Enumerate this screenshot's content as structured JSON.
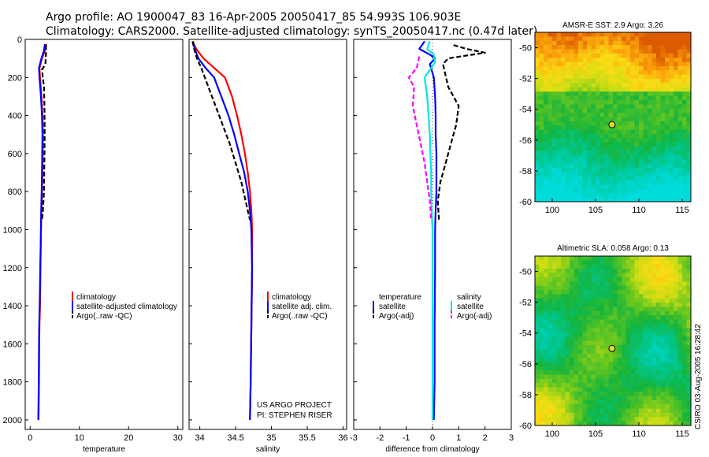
{
  "title_line1": "Argo profile: AO 1900047_83 16-Apr-2005 20050417_85 54.993S 106.903E",
  "title_line2": "Climatology: CARS2000. Satellite-adjusted climatology: synTS_20050417.nc (0.47d later)",
  "credit_vertical": "CSIRO 03-Aug-2005 16:28:42",
  "chart_data": [
    {
      "type": "line",
      "id": "temperature",
      "xlabel": "temperature",
      "ylabel": "",
      "xlim": [
        -1,
        31
      ],
      "ylim": [
        2050,
        0
      ],
      "xticks": [
        0,
        10,
        20,
        30
      ],
      "yticks": [
        0,
        200,
        400,
        600,
        800,
        1000,
        1200,
        1400,
        1600,
        1800,
        2000
      ],
      "legend": [
        "climatology",
        "satellite-adjusted climatology",
        "Argo(..raw -QC)"
      ],
      "series": [
        {
          "name": "climatology",
          "color": "#ff0000",
          "dash": "solid",
          "x": [
            3.3,
            3.0,
            2.4,
            1.9,
            2.0,
            2.3,
            2.5,
            2.6,
            2.55,
            2.5,
            2.4,
            2.3,
            2.2,
            2.1,
            2.0,
            1.9,
            1.85,
            1.8,
            1.75,
            1.7
          ],
          "y": [
            25,
            60,
            100,
            150,
            200,
            300,
            400,
            500,
            600,
            700,
            800,
            900,
            1000,
            1200,
            1400,
            1500,
            1600,
            1800,
            1900,
            2000
          ]
        },
        {
          "name": "satellite-adjusted climatology",
          "color": "#0000ff",
          "dash": "solid",
          "x": [
            3.0,
            2.8,
            2.3,
            1.8,
            1.9,
            2.2,
            2.4,
            2.5,
            2.45,
            2.4,
            2.35,
            2.25,
            2.2,
            2.05,
            1.95,
            1.85,
            1.8,
            1.75,
            1.7,
            1.65
          ],
          "y": [
            25,
            60,
            100,
            150,
            200,
            300,
            400,
            500,
            600,
            700,
            800,
            900,
            1000,
            1200,
            1400,
            1500,
            1600,
            1800,
            1900,
            2000
          ]
        },
        {
          "name": "Argo(..raw -QC)",
          "color": "#000000",
          "dash": "dash",
          "x": [
            3.2,
            3.2,
            3.1,
            2.4,
            2.8,
            2.9,
            2.95,
            2.9,
            2.85,
            2.8,
            2.6,
            2.4
          ],
          "y": [
            30,
            80,
            130,
            160,
            250,
            350,
            500,
            600,
            700,
            800,
            900,
            950
          ]
        }
      ]
    },
    {
      "type": "line",
      "id": "salinity",
      "xlabel": "salinity",
      "ylabel": "",
      "xlim": [
        33.85,
        36.05
      ],
      "ylim": [
        2050,
        0
      ],
      "xticks": [
        34,
        34.5,
        35,
        35.5,
        36
      ],
      "legend": [
        "climatology",
        "satellite adj. clim.",
        "Argo(..raw -QC)"
      ],
      "annotation_line1": "US ARGO PROJECT",
      "annotation_line2": "PI: STEPHEN RISER",
      "series": [
        {
          "name": "climatology",
          "color": "#ff0000",
          "dash": "solid",
          "x": [
            33.9,
            33.95,
            34.05,
            34.2,
            34.35,
            34.45,
            34.52,
            34.58,
            34.63,
            34.67,
            34.7,
            34.72,
            34.73,
            34.73,
            34.72,
            34.71,
            34.7
          ],
          "y": [
            10,
            50,
            100,
            150,
            200,
            300,
            400,
            500,
            600,
            700,
            800,
            900,
            1000,
            1200,
            1500,
            1800,
            2000
          ]
        },
        {
          "name": "satellite adj. clim.",
          "color": "#0000ff",
          "dash": "solid",
          "x": [
            33.9,
            33.93,
            33.98,
            34.08,
            34.2,
            34.3,
            34.4,
            34.48,
            34.55,
            34.62,
            34.67,
            34.7,
            34.72,
            34.73,
            34.72,
            34.71,
            34.7
          ],
          "y": [
            10,
            50,
            100,
            150,
            200,
            300,
            400,
            500,
            600,
            700,
            800,
            900,
            1000,
            1200,
            1500,
            1800,
            2000
          ]
        },
        {
          "name": "Argo(..raw -QC)",
          "color": "#000000",
          "dash": "dash",
          "x": [
            33.9,
            33.92,
            33.96,
            34.02,
            34.12,
            34.22,
            34.32,
            34.42,
            34.5,
            34.58,
            34.64,
            34.7
          ],
          "y": [
            10,
            50,
            100,
            150,
            250,
            350,
            450,
            550,
            650,
            750,
            850,
            950
          ]
        }
      ]
    },
    {
      "type": "line",
      "id": "difference",
      "xlabel": "difference from climatology",
      "ylabel": "",
      "xlim": [
        -3,
        3
      ],
      "ylim": [
        2050,
        0
      ],
      "xticks": [
        -3,
        -2,
        -1,
        0,
        1,
        2,
        3
      ],
      "legend_left": [
        "temperature",
        "satellite",
        "Argo(-adj)"
      ],
      "legend_right": [
        "salinity",
        "satellite",
        "Argo(-adj)"
      ],
      "series": [
        {
          "name": "temperature satellite",
          "color": "#0000ff",
          "dash": "solid",
          "x": [
            -0.3,
            -0.5,
            -0.1,
            0.1,
            -0.1,
            0.05,
            0.1,
            0.12,
            0.12,
            0.15,
            0.15,
            0.15,
            0.12,
            0.1,
            0.1,
            0.08,
            0.08,
            0.05
          ],
          "y": [
            10,
            50,
            80,
            100,
            130,
            200,
            300,
            400,
            500,
            600,
            700,
            800,
            900,
            1000,
            1200,
            1500,
            1800,
            2000
          ]
        },
        {
          "name": "salinity satellite",
          "color": "#00e5e5",
          "dash": "solid",
          "x": [
            -0.1,
            -0.2,
            0.05,
            0.1,
            -0.3,
            -0.2,
            -0.15,
            -0.1,
            -0.08,
            -0.05,
            -0.05,
            -0.03,
            0.0,
            0.0,
            0.0,
            0.0,
            0.0
          ],
          "y": [
            10,
            50,
            80,
            120,
            200,
            300,
            400,
            500,
            600,
            700,
            800,
            900,
            1000,
            1200,
            1500,
            1800,
            2000
          ]
        },
        {
          "name": "temperature Argo(-adj)",
          "color": "#000000",
          "dash": "dash",
          "x": [
            0.8,
            1.3,
            2.0,
            0.6,
            0.4,
            0.6,
            1.0,
            0.9,
            0.7,
            0.5,
            0.3,
            0.2,
            0.25
          ],
          "y": [
            30,
            50,
            70,
            100,
            130,
            250,
            350,
            450,
            550,
            650,
            750,
            850,
            950
          ]
        },
        {
          "name": "salinity Argo(-adj)",
          "color": "#ff00ff",
          "dash": "dash",
          "x": [
            -0.5,
            -0.6,
            -0.9,
            -0.7,
            -0.75,
            -0.6,
            -0.45,
            -0.3,
            -0.2,
            -0.1,
            -0.05
          ],
          "y": [
            90,
            150,
            200,
            250,
            350,
            450,
            550,
            650,
            750,
            850,
            950
          ]
        }
      ]
    },
    {
      "type": "heatmap",
      "id": "sst_map",
      "title": "AMSR-E SST: 2.9 Argo: 3.26",
      "xlim": [
        98,
        116
      ],
      "ylim": [
        -60,
        -49
      ],
      "xticks": [
        100,
        105,
        110,
        115
      ],
      "yticks": [
        -50,
        -52,
        -54,
        -56,
        -58,
        -60
      ],
      "argo_position": {
        "lon": 106.9,
        "lat": -55.0
      }
    },
    {
      "type": "heatmap",
      "id": "sla_map",
      "title": "Altimetric SLA: 0.058 Argo: 0.13",
      "xlim": [
        98,
        116
      ],
      "ylim": [
        -60,
        -49
      ],
      "xticks": [
        100,
        105,
        110,
        115
      ],
      "yticks": [
        -50,
        -52,
        -54,
        -56,
        -58,
        -60
      ],
      "argo_position": {
        "lon": 106.9,
        "lat": -55.0
      }
    }
  ]
}
